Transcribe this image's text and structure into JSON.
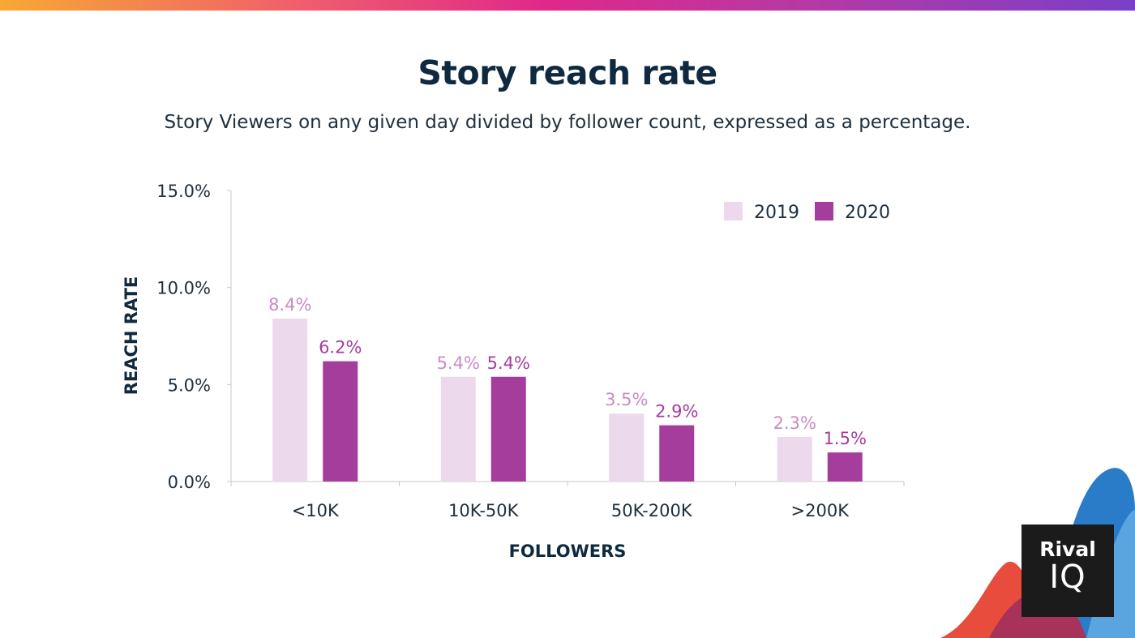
{
  "title": "Story reach rate",
  "subtitle": "Story Viewers on any given day divided by follower count, expressed as a percentage.",
  "colors": {
    "series_2019_bar": "#ecd9eb",
    "series_2019_label": "#c98cc5",
    "series_2020_bar": "#a53d9d",
    "series_2020_label": "#a53d9d",
    "axis_text": "#1f2f3d",
    "axis_title": "#0f2a40",
    "axis_line": "#c8c8c8"
  },
  "logo": {
    "line1": "Rival",
    "line2": "IQ"
  },
  "chart_data": {
    "type": "bar",
    "categories": [
      "<10K",
      "10K-50K",
      "50K-200K",
      ">200K"
    ],
    "series": [
      {
        "name": "2019",
        "values": [
          8.4,
          5.4,
          3.5,
          2.3
        ],
        "labels": [
          "8.4%",
          "5.4%",
          "3.5%",
          "2.3%"
        ]
      },
      {
        "name": "2020",
        "values": [
          6.2,
          5.4,
          2.9,
          1.5
        ],
        "labels": [
          "6.2%",
          "5.4%",
          "2.9%",
          "1.5%"
        ]
      }
    ],
    "yticks": [
      "0.0%",
      "5.0%",
      "10.0%",
      "15.0%"
    ],
    "ytick_values": [
      0,
      5,
      10,
      15
    ],
    "ylim": [
      0,
      15
    ],
    "xlabel": "FOLLOWERS",
    "ylabel": "REACH RATE",
    "legend_position": "top-right",
    "grid": false
  }
}
